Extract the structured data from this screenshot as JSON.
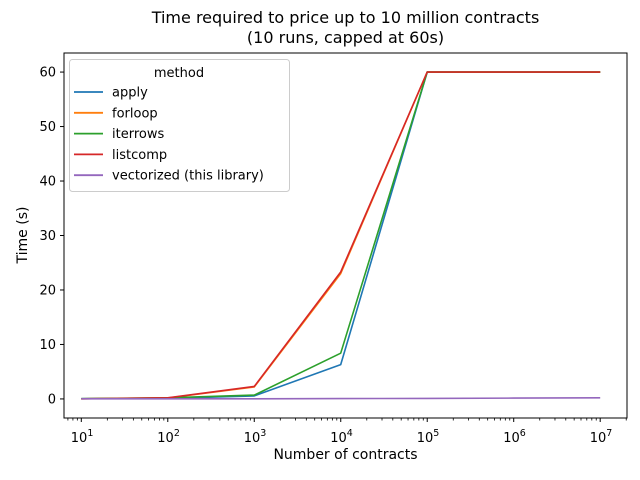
{
  "chart_data": {
    "type": "line",
    "title": "Time required to price up to 10 million contracts",
    "subtitle": "(10 runs, capped at 60s)",
    "xlabel": "Number of contracts",
    "ylabel": "Time (s)",
    "x_scale": "log",
    "grid": false,
    "cap_seconds": 60,
    "x": [
      10,
      100,
      1000,
      10000,
      100000,
      1000000,
      10000000
    ],
    "x_tick_exponents": [
      1,
      2,
      3,
      4,
      5,
      6,
      7
    ],
    "y_ticks": [
      0,
      10,
      20,
      30,
      40,
      50,
      60
    ],
    "xlim_log": [
      0.8,
      7.31
    ],
    "ylim": [
      -3.5,
      63.5
    ],
    "legend": {
      "title": "method",
      "position": "upper left"
    },
    "series": [
      {
        "name": "apply",
        "color": "#1f77b4",
        "values": [
          0.04,
          0.12,
          0.55,
          6.3,
          60,
          60,
          60
        ]
      },
      {
        "name": "forloop",
        "color": "#ff7f0e",
        "values": [
          0.03,
          0.18,
          2.2,
          23.0,
          60,
          60,
          60
        ]
      },
      {
        "name": "iterrows",
        "color": "#2ca02c",
        "values": [
          0.05,
          0.2,
          0.7,
          8.4,
          60,
          60,
          60
        ]
      },
      {
        "name": "listcomp",
        "color": "#d62728",
        "values": [
          0.03,
          0.2,
          2.3,
          23.3,
          60,
          60,
          60
        ]
      },
      {
        "name": "vectorized (this library)",
        "color": "#9467bd",
        "values": [
          0.02,
          0.02,
          0.03,
          0.06,
          0.1,
          0.15,
          0.2
        ]
      }
    ],
    "colors": {
      "background": "#ffffff",
      "axes_edge": "#000000",
      "text": "#000000",
      "legend_border": "#cccccc"
    }
  }
}
